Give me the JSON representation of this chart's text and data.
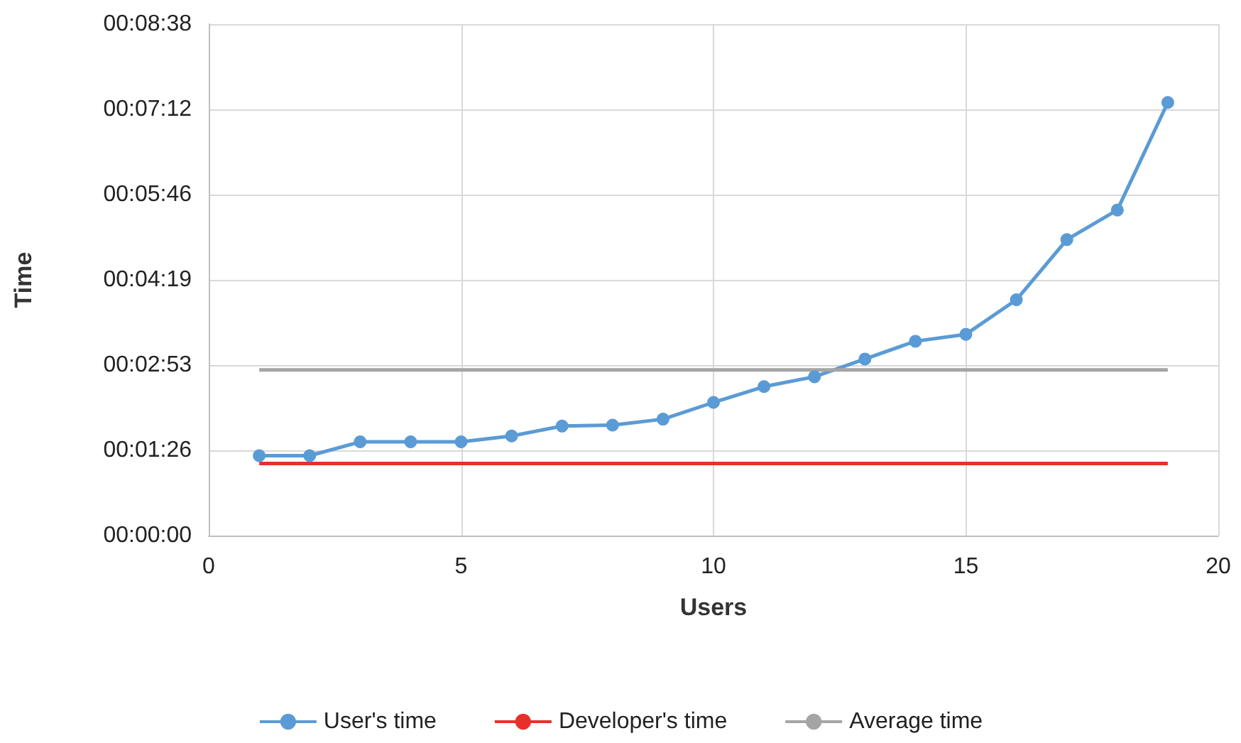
{
  "chart_data": {
    "type": "line",
    "xlabel": "Users",
    "ylabel": "Time",
    "xlim": [
      0,
      20
    ],
    "xticks": [
      0,
      5,
      10,
      15,
      20
    ],
    "ylim": [
      0,
      518.4
    ],
    "yticks": [
      {
        "value": 0,
        "label": "00:00:00"
      },
      {
        "value": 86.4,
        "label": "00:01:26"
      },
      {
        "value": 172.8,
        "label": "00:02:53"
      },
      {
        "value": 259.2,
        "label": "00:04:19"
      },
      {
        "value": 345.6,
        "label": "00:05:46"
      },
      {
        "value": 432,
        "label": "00:07:12"
      },
      {
        "value": 518.4,
        "label": "00:08:38"
      }
    ],
    "grid": true,
    "legend": "bottom",
    "series": [
      {
        "name": "User's time",
        "color": "#5b9bd5",
        "marker": "circle",
        "x": [
          1,
          2,
          3,
          4,
          5,
          6,
          7,
          8,
          9,
          10,
          11,
          12,
          13,
          14,
          15,
          16,
          17,
          18,
          19
        ],
        "values": [
          81,
          81,
          95,
          95,
          95,
          101,
          111,
          112,
          118,
          135,
          151,
          161,
          179,
          197,
          204,
          239,
          300,
          330,
          439
        ]
      },
      {
        "name": "Developer's time",
        "color": "#e8302a",
        "marker": "none",
        "x": [
          1,
          19
        ],
        "values": [
          73,
          73
        ]
      },
      {
        "name": "Average time",
        "color": "#a5a5a5",
        "marker": "none",
        "x": [
          1,
          19
        ],
        "values": [
          168,
          168
        ]
      }
    ]
  }
}
